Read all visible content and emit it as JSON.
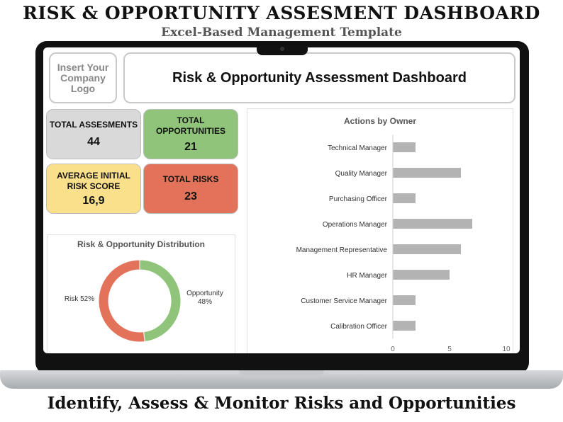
{
  "promo": {
    "title": "RISK & OPPORTUNITY ASSESMENT DASHBOARD",
    "subtitle": "Excel-Based Management Template",
    "tagline": "Identify, Assess & Monitor Risks and Opportunities"
  },
  "dashboard": {
    "logo_placeholder": "Insert Your Company Logo",
    "header_title": "Risk & Opportunity Assessment Dashboard"
  },
  "kpis": {
    "total_assessments": {
      "label": "TOTAL ASSESMENTS",
      "value": "44",
      "color": "#d9d9d9"
    },
    "total_opportunities": {
      "label": "TOTAL OPPORTUNITIES",
      "value": "21",
      "color": "#8fc47a"
    },
    "average_risk": {
      "label": "AVERAGE INITIAL RISK SCORE",
      "value": "16,9",
      "color": "#fbe08c"
    },
    "total_risks": {
      "label": "TOTAL RISKS",
      "value": "23",
      "color": "#e2735a"
    }
  },
  "chart_data": [
    {
      "type": "pie",
      "title": "Risk & Opportunity Distribution",
      "categories": [
        "Opportunity",
        "Risk"
      ],
      "values": [
        48,
        52
      ],
      "labels": [
        "Opportunity 48%",
        "Risk 52%"
      ],
      "colors": [
        "#8fc47a",
        "#e2735a"
      ],
      "donut": true
    },
    {
      "type": "bar",
      "orientation": "horizontal",
      "title": "Actions by Owner",
      "categories": [
        "Technical Manager",
        "Quality Manager",
        "Purchasing Officer",
        "Operations Manager",
        "Management Representative",
        "HR Manager",
        "Customer Service Manager",
        "Calibration Officer"
      ],
      "values": [
        2,
        6,
        2,
        7,
        6,
        5,
        2,
        2
      ],
      "xlim": [
        0,
        10
      ],
      "xticks": [
        "0",
        "5",
        "10"
      ],
      "color": "#b3b3b3",
      "grid": false
    }
  ]
}
